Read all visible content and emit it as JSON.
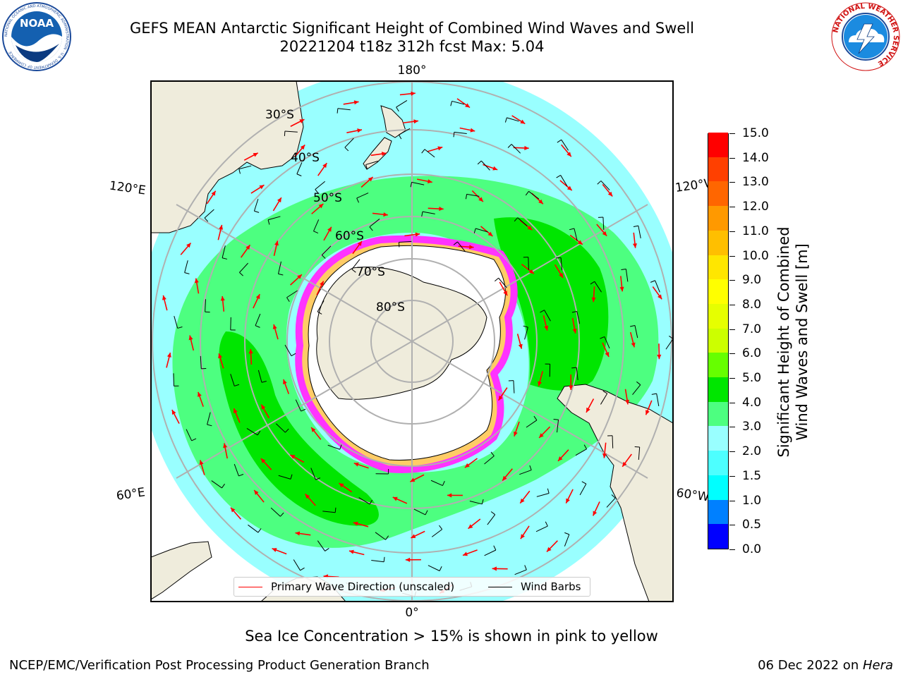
{
  "header": {
    "title_line1": "GEFS MEAN Antarctic Significant Height of Combined Wind Waves and Swell",
    "title_line2": "20221204 t18z 312h fcst   Max: 5.04"
  },
  "logos": {
    "left": {
      "name": "noaa-logo",
      "text": "NOAA",
      "ring_text": "NATIONAL OCEANIC AND ATMOSPHERIC ADMINISTRATION · U.S. DEPARTMENT OF COMMERCE"
    },
    "right": {
      "name": "nws-logo",
      "ring_text": "NATIONAL WEATHER SERVICE"
    }
  },
  "map": {
    "projection": "south-polar-stereographic",
    "longitude_labels": {
      "top": "180°",
      "bottom": "0°",
      "upper_left": "120°E",
      "lower_left": "60°E",
      "upper_right": "120°W",
      "lower_right": "60°W"
    },
    "latitude_labels": [
      "30°S",
      "40°S",
      "50°S",
      "60°S",
      "70°S",
      "80°S"
    ],
    "colors": {
      "land": "#efecdc",
      "ocean_2_3m": "#99ffff",
      "wave_3_4m": "#4dff80",
      "wave_4_5m": "#00e600",
      "sea_ice": "#ff33ff",
      "ice_edge_yellow": "#ffcc66",
      "grid": "#b0b0b0",
      "wave_arrow": "#ff0000",
      "wind_barb": "#000000"
    }
  },
  "colorbar": {
    "label_line1": "Significant Height of Combined",
    "label_line2": "Wind Waves and Swell [m]",
    "ticks": [
      "15.0",
      "14.0",
      "13.0",
      "12.0",
      "11.0",
      "10.0",
      "9.0",
      "8.0",
      "7.0",
      "6.0",
      "5.0",
      "4.0",
      "3.0",
      "2.0",
      "1.5",
      "1.0",
      "0.5",
      "0.0"
    ],
    "bins": [
      {
        "from": 0.0,
        "to": 0.5,
        "color": "#0000ff"
      },
      {
        "from": 0.5,
        "to": 1.0,
        "color": "#0080ff"
      },
      {
        "from": 1.0,
        "to": 1.5,
        "color": "#00ffff"
      },
      {
        "from": 1.5,
        "to": 2.0,
        "color": "#4dffff"
      },
      {
        "from": 2.0,
        "to": 3.0,
        "color": "#99ffff"
      },
      {
        "from": 3.0,
        "to": 4.0,
        "color": "#4dff80"
      },
      {
        "from": 4.0,
        "to": 5.0,
        "color": "#00e600"
      },
      {
        "from": 5.0,
        "to": 6.0,
        "color": "#66ff00"
      },
      {
        "from": 6.0,
        "to": 7.0,
        "color": "#ccff00"
      },
      {
        "from": 7.0,
        "to": 8.0,
        "color": "#e6ff00"
      },
      {
        "from": 8.0,
        "to": 9.0,
        "color": "#ffff00"
      },
      {
        "from": 9.0,
        "to": 10.0,
        "color": "#ffe600"
      },
      {
        "from": 10.0,
        "to": 11.0,
        "color": "#ffbf00"
      },
      {
        "from": 11.0,
        "to": 12.0,
        "color": "#ff9900"
      },
      {
        "from": 12.0,
        "to": 13.0,
        "color": "#ff6600"
      },
      {
        "from": 13.0,
        "to": 14.0,
        "color": "#ff4000"
      },
      {
        "from": 14.0,
        "to": 15.0,
        "color": "#ff0000"
      }
    ]
  },
  "legend": {
    "wave_label": "Primary Wave Direction (unscaled)",
    "barb_label": "Wind Barbs"
  },
  "caption": "Sea Ice Concentration > 15% is shown in pink to yellow",
  "footer": {
    "left": "NCEP/EMC/Verification Post Processing Product Generation Branch",
    "right_prefix": "06 Dec 2022 on ",
    "right_host": "Hera"
  }
}
